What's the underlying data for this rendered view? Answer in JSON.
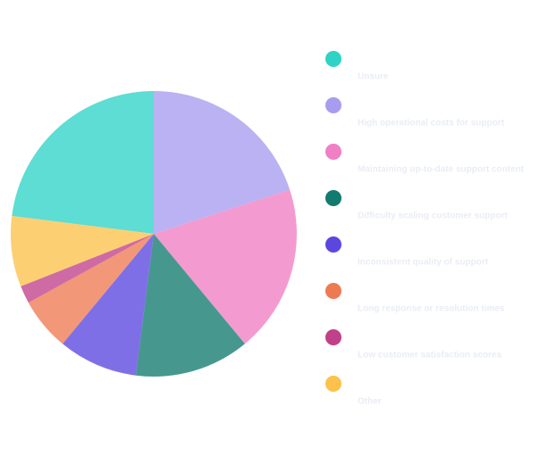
{
  "chart_data": {
    "type": "pie",
    "categories": [
      "Unsure",
      "High operational costs for support",
      "Maintaining up-to-date support content",
      "Difficulty scaling customer support",
      "Inconsistent quality of support",
      "Long response or resolution times",
      "Low customer satisfaction scores",
      "Other"
    ],
    "values": [
      23,
      20,
      19,
      13,
      9,
      6,
      2,
      8
    ],
    "colors": [
      "#2fd3c6",
      "#a79cf0",
      "#f07fc4",
      "#127b6f",
      "#5b47e0",
      "#ee7a52",
      "#c0408a",
      "#fcc24c"
    ],
    "legend": "right"
  }
}
